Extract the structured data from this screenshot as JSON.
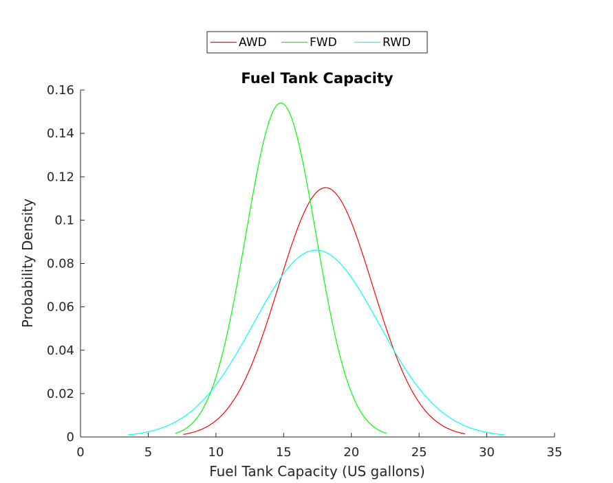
{
  "chart_data": {
    "type": "line",
    "title": "Fuel Tank Capacity",
    "xlabel": "Fuel Tank Capacity (US gallons)",
    "ylabel": "Probability Density",
    "xlim": [
      0,
      35
    ],
    "ylim": [
      0,
      0.16
    ],
    "x_ticks": [
      0,
      5,
      10,
      15,
      20,
      25,
      30,
      35
    ],
    "x_tick_labels": [
      "0",
      "5",
      "10",
      "15",
      "20",
      "25",
      "30",
      "35"
    ],
    "y_ticks": [
      0,
      0.02,
      0.04,
      0.06,
      0.08,
      0.1,
      0.12,
      0.14,
      0.16
    ],
    "y_tick_labels": [
      "0",
      "0.02",
      "0.04",
      "0.06",
      "0.08",
      "0.1",
      "0.12",
      "0.14",
      "0.16"
    ],
    "grid": false,
    "legend_position": "top-center",
    "series": [
      {
        "name": "AWD",
        "color": "#ff0000",
        "mean": 18.1,
        "sd": 3.47,
        "x_range": [
          7.6,
          28.4
        ]
      },
      {
        "name": "FWD",
        "color": "#00ff00",
        "mean": 14.8,
        "sd": 2.59,
        "x_range": [
          7.0,
          22.6
        ]
      },
      {
        "name": "RWD",
        "color": "#00ffff",
        "mean": 17.4,
        "sd": 4.63,
        "x_range": [
          3.5,
          31.3
        ]
      }
    ]
  }
}
